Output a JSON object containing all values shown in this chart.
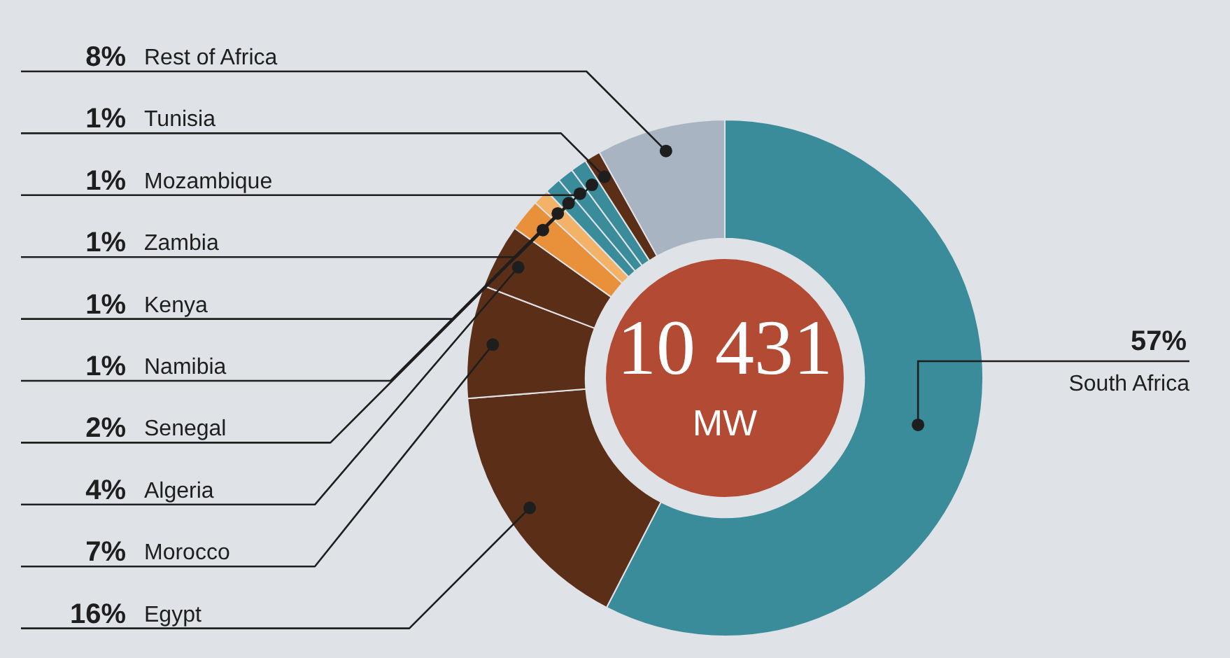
{
  "chart_data": {
    "type": "donut",
    "categories": [
      "South Africa",
      "Egypt",
      "Morocco",
      "Algeria",
      "Senegal",
      "Namibia",
      "Kenya",
      "Zambia",
      "Mozambique",
      "Tunisia",
      "Rest of Africa"
    ],
    "values": [
      57,
      16,
      7,
      4,
      2,
      1,
      1,
      1,
      1,
      1,
      8
    ],
    "value_labels": [
      "57%",
      "16%",
      "7%",
      "4%",
      "2%",
      "1%",
      "1%",
      "1%",
      "1%",
      "1%",
      "8%"
    ],
    "colors": [
      "#3a8c9a",
      "#5b2e18",
      "#5b2e18",
      "#5b2e18",
      "#e8913a",
      "#f2b268",
      "#3a8c9a",
      "#3a8c9a",
      "#3a8c9a",
      "#5b2e18",
      "#a9b4c2"
    ],
    "annotations": [
      "10 431",
      "MW"
    ]
  }
}
